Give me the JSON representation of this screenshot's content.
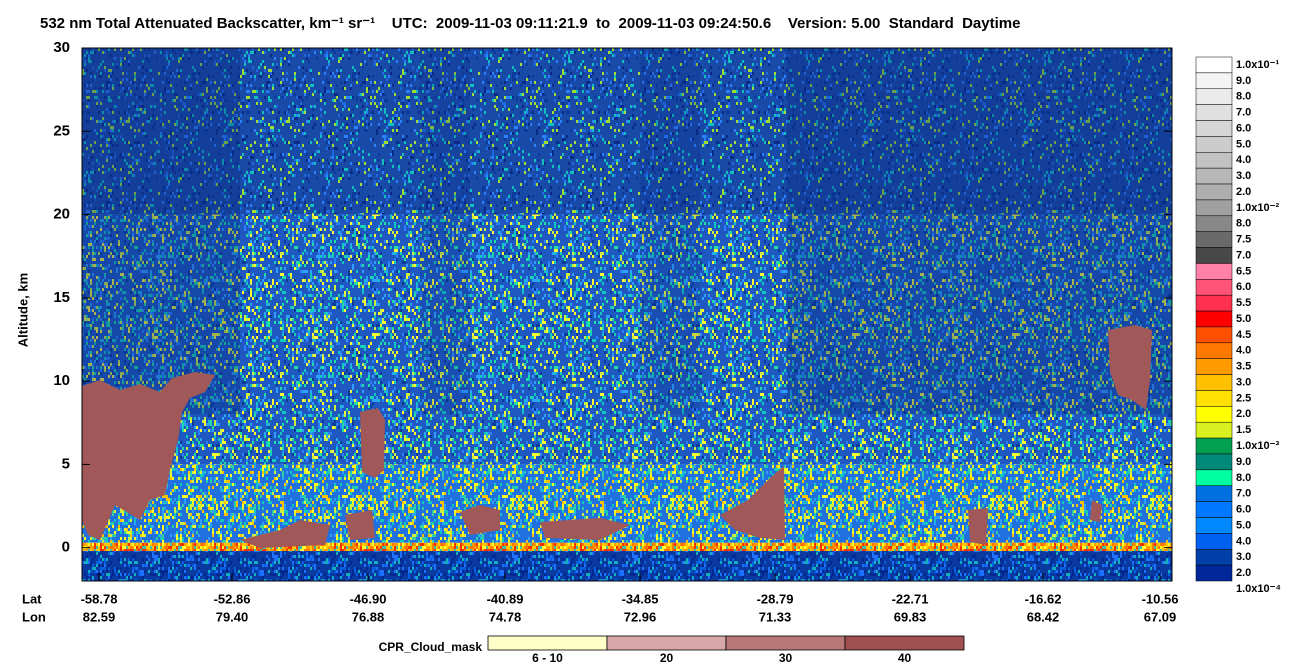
{
  "chart_data": {
    "type": "heatmap",
    "title": "532 nm Total Attenuated Backscatter, km⁻¹ sr⁻¹    UTC:  2009-11-03 09:11:21.9  to  2009-11-03 09:24:50.6    Version: 5.00  Standard  Daytime",
    "ylabel": "Altitude, km",
    "ylim": [
      -2,
      30
    ],
    "yticks": [
      0,
      5,
      10,
      15,
      20,
      25,
      30
    ],
    "lat_label": "Lat",
    "lon_label": "Lon",
    "lat": [
      "-58.78",
      "-52.86",
      "-46.90",
      "-40.89",
      "-34.85",
      "-28.79",
      "-22.71",
      "-16.62",
      "-10.56"
    ],
    "lon": [
      "82.59",
      "79.40",
      "76.88",
      "74.78",
      "72.96",
      "71.33",
      "69.83",
      "68.42",
      "67.09"
    ],
    "colorbar": {
      "labels": [
        "1.0x10⁻¹",
        "9.0",
        "8.0",
        "7.0",
        "6.0",
        "5.0",
        "4.0",
        "3.0",
        "2.0",
        "1.0x10⁻²",
        "8.0",
        "7.5",
        "7.0",
        "6.5",
        "6.0",
        "5.5",
        "5.0",
        "4.5",
        "4.0",
        "3.5",
        "3.0",
        "2.5",
        "2.0",
        "1.5",
        "1.0x10⁻³",
        "9.0",
        "8.0",
        "7.0",
        "6.0",
        "5.0",
        "4.0",
        "3.0",
        "2.0",
        "1.0x10⁻⁴"
      ],
      "colors": [
        "#ffffff",
        "#f4f4f4",
        "#eaeaea",
        "#e0e0e0",
        "#d6d6d6",
        "#cccccc",
        "#c2c2c2",
        "#b8b8b8",
        "#aeaeae",
        "#a0a0a0",
        "#888888",
        "#6a6a6a",
        "#484848",
        "#ff80a8",
        "#ff5478",
        "#ff3050",
        "#ff0000",
        "#ff5000",
        "#ff7800",
        "#ff9a00",
        "#ffc000",
        "#ffe000",
        "#ffff00",
        "#d8f020",
        "#00a050",
        "#008878",
        "#00ffa0",
        "#0070e0",
        "#0078ff",
        "#0088ff",
        "#0060f0",
        "#0040a8",
        "#00289a"
      ]
    },
    "cpr_legend": {
      "title": "CPR_Cloud_mask",
      "labels": [
        "6 - 10",
        "20",
        "30",
        "40"
      ],
      "colors": [
        "#ffffc8",
        "#d8a8a8",
        "#b87878",
        "#a05050"
      ]
    }
  }
}
